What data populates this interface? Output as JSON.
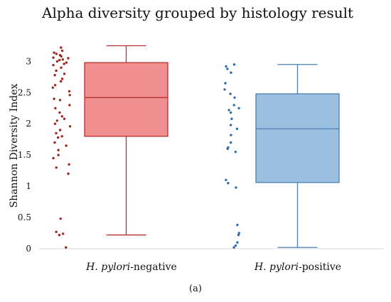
{
  "chart_data": {
    "type": "box",
    "title": "Alpha diversity grouped by histology result",
    "ylabel": "Shannon Diversity Index",
    "xlabel": "",
    "ylim": [
      0,
      3.3
    ],
    "yticks": [
      "0",
      "0.5",
      "1",
      "1.5",
      "2",
      "2.5",
      "3"
    ],
    "panel_label": "(a)",
    "categories": [
      {
        "italic": "H. pylori",
        "suffix": "-negative"
      },
      {
        "italic": "H. pylori",
        "suffix": "-positive"
      }
    ],
    "series": [
      {
        "box": {
          "min": 0.22,
          "q1": 1.8,
          "median": 2.42,
          "q3": 2.98,
          "max": 3.25
        },
        "fill": "#ef8f8f",
        "stroke": "#b8302c",
        "point_color": "#a0251f",
        "points": [
          3.22,
          3.17,
          3.14,
          3.12,
          3.1,
          3.08,
          3.06,
          3.05,
          3.03,
          3.02,
          3.0,
          2.98,
          2.96,
          2.94,
          2.9,
          2.85,
          2.8,
          2.78,
          2.72,
          2.68,
          2.62,
          2.58,
          2.52,
          2.46,
          2.4,
          2.38,
          2.3,
          2.25,
          2.18,
          2.12,
          2.08,
          2.05,
          2.0,
          1.96,
          1.9,
          1.85,
          1.8,
          1.78,
          1.7,
          1.65,
          1.58,
          1.5,
          1.45,
          1.35,
          1.3,
          1.2,
          0.48,
          0.27,
          0.24,
          0.22,
          0.02
        ]
      },
      {
        "box": {
          "min": 0.02,
          "q1": 1.06,
          "median": 1.92,
          "q3": 2.48,
          "max": 2.95
        },
        "fill": "#9bbfdf",
        "stroke": "#4a7fb0",
        "point_color": "#2e6aad",
        "points": [
          2.95,
          2.92,
          2.88,
          2.82,
          2.65,
          2.55,
          2.48,
          2.42,
          2.3,
          2.25,
          2.22,
          2.18,
          2.08,
          1.98,
          1.92,
          1.82,
          1.7,
          1.62,
          1.6,
          1.55,
          1.1,
          1.05,
          0.98,
          0.38,
          0.25,
          0.22,
          0.1,
          0.05,
          0.02
        ]
      }
    ]
  }
}
